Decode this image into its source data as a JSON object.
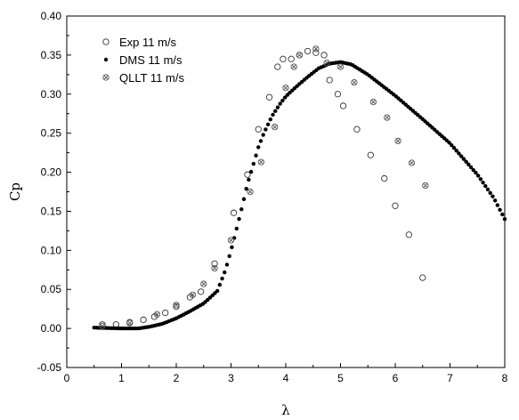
{
  "chart_data": {
    "type": "scatter",
    "title": "",
    "xlabel": "λ",
    "ylabel": "Cp",
    "xlim": [
      0,
      8
    ],
    "ylim": [
      -0.05,
      0.4
    ],
    "xticks": [
      0,
      1,
      2,
      3,
      4,
      5,
      6,
      7,
      8
    ],
    "xtick_labels": [
      "0",
      "1",
      "2",
      "3",
      "4",
      "5",
      "6",
      "7",
      "8"
    ],
    "yticks": [
      -0.05,
      0.0,
      0.05,
      0.1,
      0.15,
      0.2,
      0.25,
      0.3,
      0.35,
      0.4
    ],
    "ytick_labels": [
      "-0.05",
      "0.00",
      "0.05",
      "0.10",
      "0.15",
      "0.20",
      "0.25",
      "0.30",
      "0.35",
      "0.40"
    ],
    "grid": false,
    "legend_position": "top-left",
    "series": [
      {
        "name": "Exp 11 m/s",
        "marker": "open-circle",
        "color": "#333333",
        "points": [
          [
            0.65,
            0.005
          ],
          [
            0.9,
            0.005
          ],
          [
            1.15,
            0.008
          ],
          [
            1.4,
            0.011
          ],
          [
            1.6,
            0.015
          ],
          [
            1.8,
            0.02
          ],
          [
            2.0,
            0.028
          ],
          [
            2.25,
            0.04
          ],
          [
            2.45,
            0.047
          ],
          [
            2.7,
            0.083
          ],
          [
            3.05,
            0.148
          ],
          [
            3.3,
            0.197
          ],
          [
            3.5,
            0.255
          ],
          [
            3.7,
            0.296
          ],
          [
            3.85,
            0.335
          ],
          [
            3.95,
            0.345
          ],
          [
            4.1,
            0.345
          ],
          [
            4.25,
            0.35
          ],
          [
            4.4,
            0.355
          ],
          [
            4.55,
            0.353
          ],
          [
            4.7,
            0.35
          ],
          [
            4.8,
            0.318
          ],
          [
            4.95,
            0.3
          ],
          [
            5.05,
            0.285
          ],
          [
            5.3,
            0.255
          ],
          [
            5.55,
            0.222
          ],
          [
            5.8,
            0.192
          ],
          [
            6.0,
            0.157
          ],
          [
            6.25,
            0.12
          ],
          [
            6.5,
            0.065
          ]
        ]
      },
      {
        "name": "DMS 11 m/s",
        "marker": "filled-circle",
        "color": "#000000",
        "points": [
          [
            0.5,
            0.001
          ],
          [
            1.0,
            0.0
          ],
          [
            1.3,
            0.0
          ],
          [
            1.5,
            0.002
          ],
          [
            1.75,
            0.006
          ],
          [
            2.0,
            0.013
          ],
          [
            2.25,
            0.022
          ],
          [
            2.5,
            0.032
          ],
          [
            2.75,
            0.048
          ],
          [
            2.9,
            0.075
          ],
          [
            3.0,
            0.1
          ],
          [
            3.1,
            0.127
          ],
          [
            3.2,
            0.155
          ],
          [
            3.3,
            0.185
          ],
          [
            3.4,
            0.208
          ],
          [
            3.5,
            0.232
          ],
          [
            3.6,
            0.25
          ],
          [
            3.75,
            0.272
          ],
          [
            3.9,
            0.288
          ],
          [
            4.0,
            0.297
          ],
          [
            4.2,
            0.31
          ],
          [
            4.4,
            0.322
          ],
          [
            4.6,
            0.333
          ],
          [
            4.8,
            0.339
          ],
          [
            5.0,
            0.341
          ],
          [
            5.2,
            0.338
          ],
          [
            5.5,
            0.325
          ],
          [
            6.0,
            0.298
          ],
          [
            6.5,
            0.268
          ],
          [
            7.0,
            0.237
          ],
          [
            7.5,
            0.197
          ],
          [
            7.8,
            0.167
          ],
          [
            8.0,
            0.14
          ]
        ]
      },
      {
        "name": "QLLT 11 m/s",
        "marker": "crossed-circle",
        "color": "#555555",
        "points": [
          [
            0.65,
            0.003
          ],
          [
            1.15,
            0.007
          ],
          [
            1.65,
            0.018
          ],
          [
            2.0,
            0.03
          ],
          [
            2.3,
            0.043
          ],
          [
            2.5,
            0.057
          ],
          [
            2.7,
            0.077
          ],
          [
            3.0,
            0.113
          ],
          [
            3.35,
            0.175
          ],
          [
            3.55,
            0.213
          ],
          [
            3.8,
            0.258
          ],
          [
            4.0,
            0.308
          ],
          [
            4.15,
            0.335
          ],
          [
            4.25,
            0.35
          ],
          [
            4.55,
            0.358
          ],
          [
            4.75,
            0.34
          ],
          [
            5.0,
            0.335
          ],
          [
            5.25,
            0.315
          ],
          [
            5.6,
            0.29
          ],
          [
            5.85,
            0.27
          ],
          [
            6.05,
            0.24
          ],
          [
            6.3,
            0.212
          ],
          [
            6.55,
            0.183
          ]
        ]
      }
    ]
  }
}
